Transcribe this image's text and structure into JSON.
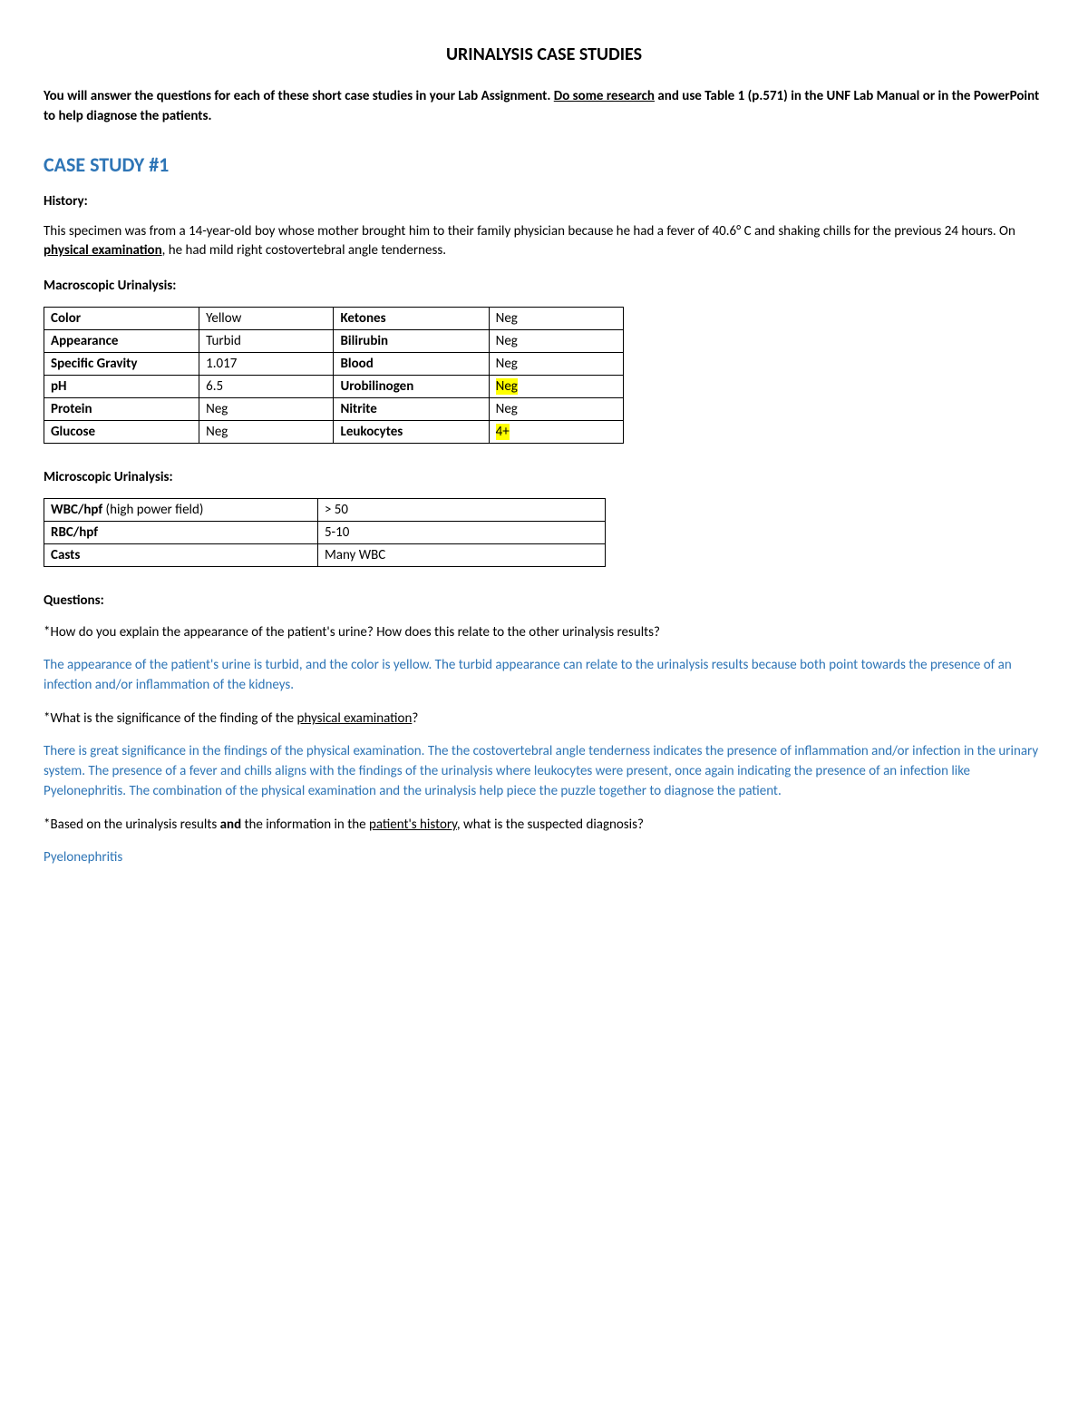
{
  "title": "URINALYSIS CASE STUDIES",
  "intro": {
    "p1a": "You will answer the questions for each of these short case studies in your Lab Assignment.  ",
    "p1u": "Do some research",
    "p1b": " and use Table 1 (p.571) in the UNF Lab Manual or in the PowerPoint to help diagnose the patients."
  },
  "case_heading": "CASE STUDY #1",
  "history_label": "History:",
  "history": {
    "a": "This specimen was from a 14-year-old boy whose mother brought him to their family physician because he had a fever of 40.6° C and shaking chills for the previous 24 hours. On ",
    "u": "physical examination",
    "b": ", he had mild right costovertebral angle tenderness."
  },
  "macro_label": "Macroscopic Urinalysis:",
  "macro": {
    "rows": [
      {
        "l1": "Color",
        "v1": "Yellow",
        "l2": "Ketones",
        "v2": "Neg",
        "hl2": false
      },
      {
        "l1": "Appearance",
        "v1": "Turbid",
        "l2": "Bilirubin",
        "v2": "Neg",
        "hl2": false
      },
      {
        "l1": "Specific Gravity",
        "v1": "1.017",
        "l2": "Blood",
        "v2": "Neg",
        "hl2": false
      },
      {
        "l1": "pH",
        "v1": "6.5",
        "l2": "Urobilinogen",
        "v2": "Neg",
        "hl2": true
      },
      {
        "l1": "Protein",
        "v1": "Neg",
        "l2": "Nitrite",
        "v2": "Neg",
        "hl2": false
      },
      {
        "l1": "Glucose",
        "v1": "Neg",
        "l2": "Leukocytes",
        "v2": "4+",
        "hl2": true
      }
    ]
  },
  "micro_label": "Microscopic Urinalysis:",
  "micro": {
    "rows": [
      {
        "l_b": "WBC/hpf",
        "l_n": " (high power field)",
        "v": "> 50"
      },
      {
        "l_b": "RBC/hpf",
        "l_n": "",
        "v": "5-10"
      },
      {
        "l_b": "Casts",
        "l_n": "",
        "v": "Many WBC"
      }
    ]
  },
  "questions_label": "Questions:",
  "q1": "*How do you explain the appearance of the patient's urine? How does this relate to the other urinalysis results?",
  "a1": "The appearance of the patient's urine is turbid, and the color is yellow. The turbid appearance can relate to the urinalysis results because both point towards the presence of an infection and/or inflammation of the kidneys.",
  "q2a": "*What is the significance of the finding of the ",
  "q2u": "physical examination",
  "q2b": "?",
  "a2": "There is great significance in the findings of the physical examination. The the costovertebral angle tenderness indicates the presence of inflammation and/or infection in the urinary system. The presence of a fever and chills aligns with the findings of the urinalysis where leukocytes were present, once again indicating the presence of an infection like Pyelonephritis. The combination of the physical examination and the urinalysis help piece the puzzle together to diagnose the patient.",
  "q3a": "*Based on the urinalysis results ",
  "q3b": "and",
  "q3c": " the information in the ",
  "q3u": "patient's history",
  "q3d": ", what is the suspected diagnosis?",
  "a3": "Pyelonephritis"
}
